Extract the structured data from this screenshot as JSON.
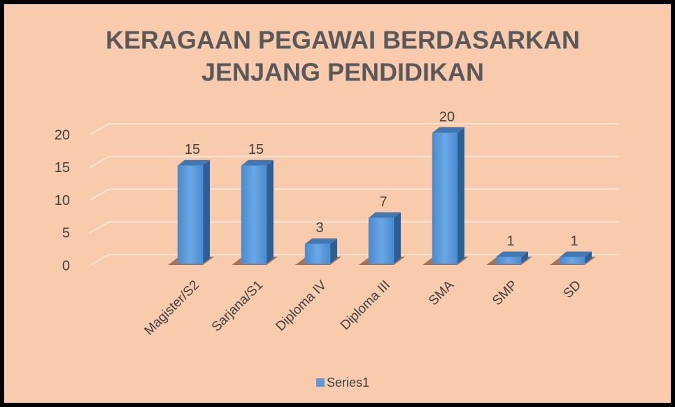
{
  "chart_data": {
    "type": "bar3d",
    "title": "KERAGAAN PEGAWAI BERDASARKAN",
    "subtitle": "JENJANG PENDIDIKAN",
    "categories": [
      "Magister/S2",
      "Sarjana/S1",
      "Diploma IV",
      "Diploma III",
      "SMA",
      "SMP",
      "SD"
    ],
    "series": [
      {
        "name": "Series1",
        "color": "#5b9bd5",
        "values": [
          15,
          15,
          3,
          7,
          20,
          1,
          1
        ]
      }
    ],
    "ylim": [
      0,
      20
    ],
    "yticks": [
      0,
      5,
      10,
      15,
      20
    ],
    "grid": true,
    "legend": "bottom"
  }
}
